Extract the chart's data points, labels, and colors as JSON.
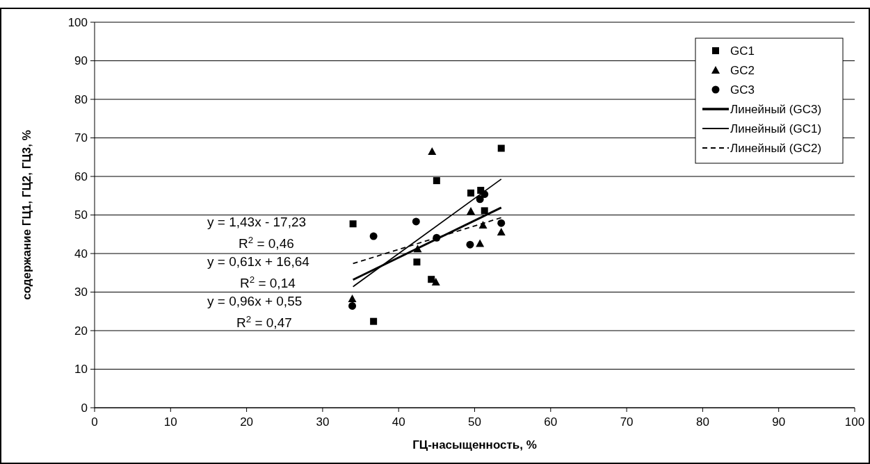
{
  "chart_data": {
    "type": "scatter",
    "xlabel": "ГЦ-насыщенность, %",
    "ylabel": "содержание ГЦ1, ГЦ2, ГЦ3, %",
    "xlim": [
      0,
      100
    ],
    "xticks": [
      0,
      10,
      20,
      30,
      40,
      50,
      60,
      70,
      80,
      90,
      100
    ],
    "ylim": [
      0,
      100
    ],
    "yticks": [
      0,
      10,
      20,
      30,
      40,
      50,
      60,
      70,
      80,
      90,
      100
    ],
    "grid": "y",
    "legend": "top right",
    "series": [
      {
        "name": "GC1",
        "color": "#000000",
        "marker": "square",
        "x": [
          34.0,
          36.7,
          42.4,
          44.3,
          51.3,
          45.0,
          53.5,
          49.5,
          50.8
        ],
        "values": [
          47.7,
          22.4,
          37.8,
          33.3,
          51.1,
          58.9,
          67.3,
          55.7,
          56.4
        ]
      },
      {
        "name": "GC2",
        "color": "#000000",
        "marker": "triangle",
        "x": [
          33.9,
          42.5,
          44.9,
          50.7,
          51.1,
          53.5,
          44.4,
          49.5
        ],
        "values": [
          28.3,
          41.2,
          32.6,
          42.6,
          47.4,
          45.6,
          66.5,
          51.0
        ]
      },
      {
        "name": "GC3",
        "color": "#000000",
        "marker": "circle",
        "x": [
          33.9,
          36.7,
          42.3,
          45.0,
          49.4,
          53.5,
          50.7,
          51.3
        ],
        "values": [
          26.4,
          44.5,
          48.3,
          44.1,
          42.3,
          47.9,
          54.1,
          55.4
        ]
      },
      {
        "name": "Линейный (GC3)",
        "type": "line",
        "color": "#000000",
        "marker": "none",
        "line_style": "solid",
        "x": [
          34,
          53.5
        ],
        "values": [
          33.2,
          51.9
        ]
      },
      {
        "name": "Линейный (GC1)",
        "type": "line",
        "color": "#000000",
        "marker": "none",
        "line_style": "solid",
        "x": [
          34,
          53.5
        ],
        "values": [
          31.4,
          59.3
        ]
      },
      {
        "name": "Линейный (GC2)",
        "type": "line",
        "color": "#000000",
        "marker": "none",
        "line_style": "dashed",
        "x": [
          34,
          53.5
        ],
        "values": [
          37.4,
          49.3
        ]
      }
    ],
    "annotations": [
      "y = 1,43x - 17,23",
      "R$^{2}$ = 0,46",
      "y = 0,61x + 16,64",
      "R$^{2}$ = 0,14",
      "y = 0,96x + 0,55",
      "R$^{2}$ = 0,47"
    ]
  }
}
